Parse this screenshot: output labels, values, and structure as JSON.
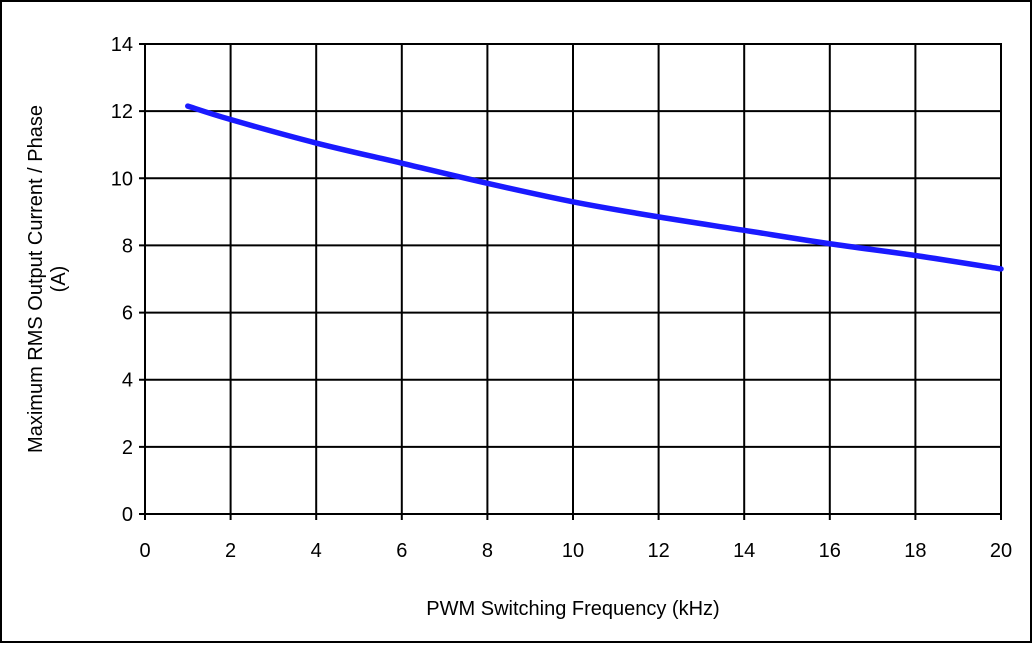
{
  "chart_data": {
    "type": "line",
    "title": "",
    "xlabel": "PWM Switching Frequency (kHz)",
    "ylabel_lines": [
      "Maximum RMS Output Current / Phase",
      "(A)"
    ],
    "xlim": [
      0,
      20
    ],
    "ylim": [
      0,
      14
    ],
    "x_ticks": [
      "0",
      "2",
      "4",
      "6",
      "8",
      "10",
      "12",
      "14",
      "16",
      "18",
      "20"
    ],
    "y_ticks": [
      "0",
      "2",
      "4",
      "6",
      "8",
      "10",
      "12",
      "14"
    ],
    "grid": true,
    "legend": "none",
    "series": [
      {
        "color": "#1a1aff",
        "x": [
          1,
          2,
          4,
          6,
          8,
          10,
          12,
          14,
          16,
          18,
          20
        ],
        "y": [
          12.15,
          11.75,
          11.05,
          10.45,
          9.85,
          9.3,
          8.85,
          8.45,
          8.05,
          7.7,
          7.3
        ]
      }
    ]
  }
}
